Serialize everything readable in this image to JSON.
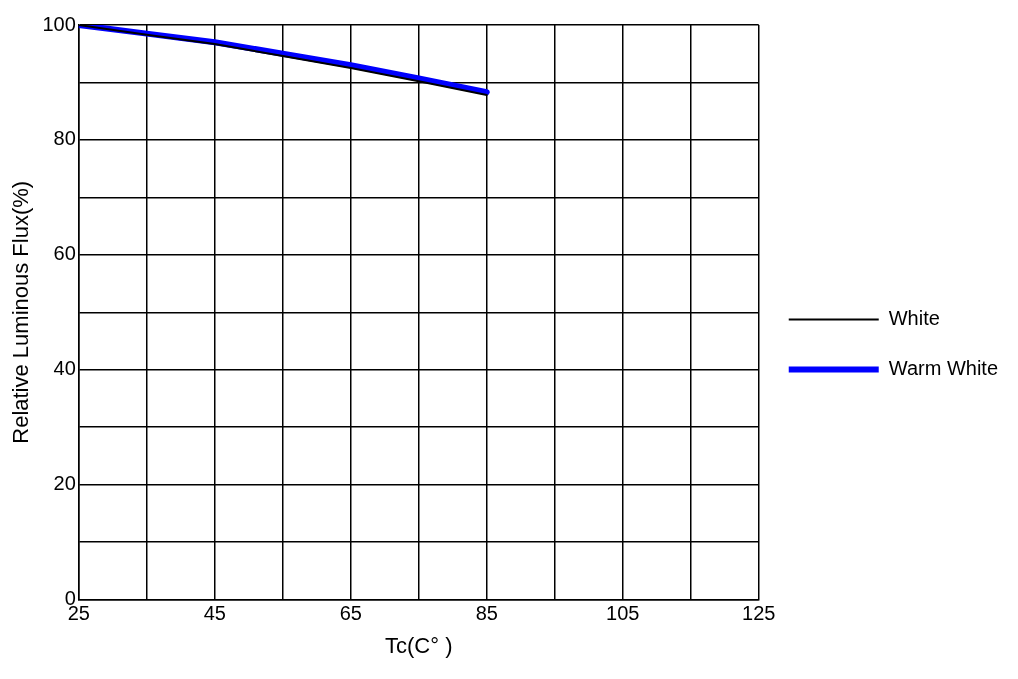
{
  "chart_data": {
    "type": "line",
    "xlabel": "Tc(C° )",
    "ylabel": "Relative Luminous Flux(%)",
    "x": [
      25,
      35,
      45,
      55,
      65,
      75,
      85
    ],
    "series": [
      {
        "name": "Warm White",
        "color": "#0000ff",
        "values": [
          100,
          98.5,
          97,
          95,
          93,
          90.7,
          88.3
        ]
      },
      {
        "name": "White",
        "color": "#000000",
        "values": [
          100,
          98.3,
          96.7,
          94.6,
          92.5,
          90.2,
          87.8
        ]
      }
    ],
    "xlim": [
      25,
      125
    ],
    "xticks": [
      25,
      {
        "value": 35,
        "label": null
      },
      45,
      {
        "value": 55,
        "label": null
      },
      65,
      {
        "value": 75,
        "label": null
      },
      85,
      {
        "value": 95,
        "label": null
      },
      105,
      {
        "value": 115,
        "label": null
      },
      125
    ],
    "ylim": [
      0,
      100
    ],
    "yticks": [
      0,
      {
        "value": 10,
        "label": null
      },
      20,
      {
        "value": 30,
        "label": null
      },
      40,
      {
        "value": 50,
        "label": null
      },
      60,
      {
        "value": 70,
        "label": null
      },
      80,
      {
        "value": 90,
        "label": null
      },
      100
    ],
    "grid": true,
    "legend": "right",
    "marker": "none",
    "line_style": "solid"
  }
}
